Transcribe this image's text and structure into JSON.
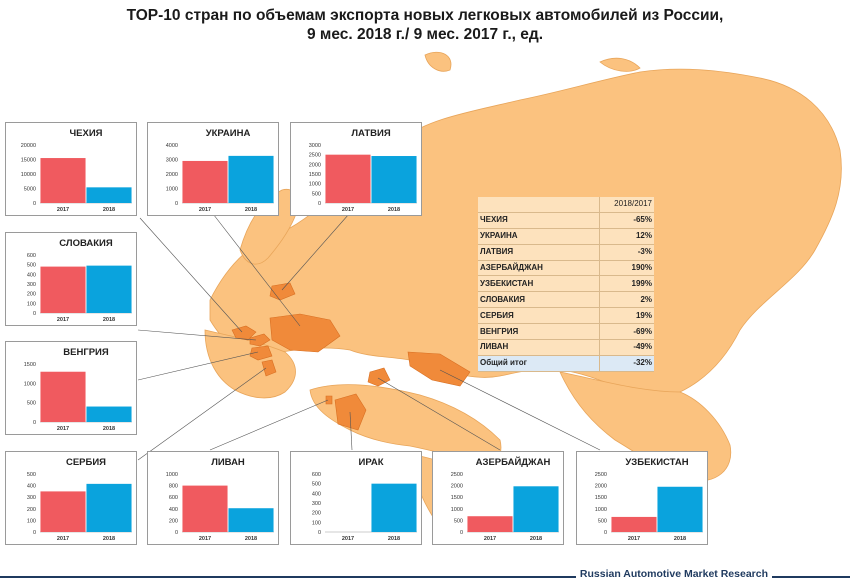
{
  "title": {
    "line1": "ТОР-10 стран по объемам экспорта новых легковых автомобилей из России,",
    "line2": "9 мес. 2018 г./ 9 мес. 2017 г., ед."
  },
  "colors": {
    "y2017": "#f05a5f",
    "y2018": "#0aa3dd",
    "land": "#fbc27f",
    "highlight": "#f08a3a",
    "border": "#e8a55a"
  },
  "table": {
    "header": "2018/2017",
    "rows": [
      {
        "country": "ЧЕХИЯ",
        "value": "-65%"
      },
      {
        "country": "УКРАИНА",
        "value": "12%"
      },
      {
        "country": "ЛАТВИЯ",
        "value": "-3%"
      },
      {
        "country": "АЗЕРБАЙДЖАН",
        "value": "190%"
      },
      {
        "country": "УЗБЕКИСТАН",
        "value": "199%"
      },
      {
        "country": "СЛОВАКИЯ",
        "value": "2%"
      },
      {
        "country": "СЕРБИЯ",
        "value": "19%"
      },
      {
        "country": "ВЕНГРИЯ",
        "value": "-69%"
      },
      {
        "country": "ЛИВАН",
        "value": "-49%"
      }
    ],
    "total": {
      "country": "Общий итог",
      "value": "-32%"
    }
  },
  "footer": "Russian Automotive Market Research",
  "chart_data": [
    {
      "type": "bar",
      "title": "ЧЕХИЯ",
      "categories": [
        "2017",
        "2018"
      ],
      "values": [
        15500,
        5400
      ],
      "yticks": [
        0,
        5000,
        10000,
        15000,
        20000
      ],
      "ylim": [
        0,
        20000
      ]
    },
    {
      "type": "bar",
      "title": "УКРАИНА",
      "categories": [
        "2017",
        "2018"
      ],
      "values": [
        2900,
        3250
      ],
      "yticks": [
        0,
        1000,
        2000,
        3000,
        4000
      ],
      "ylim": [
        0,
        4000
      ]
    },
    {
      "type": "bar",
      "title": "ЛАТВИЯ",
      "categories": [
        "2017",
        "2018"
      ],
      "values": [
        2500,
        2430
      ],
      "yticks": [
        0,
        500,
        1000,
        1500,
        2000,
        2500,
        3000
      ],
      "ylim": [
        0,
        3000
      ]
    },
    {
      "type": "bar",
      "title": "СЛОВАКИЯ",
      "categories": [
        "2017",
        "2018"
      ],
      "values": [
        480,
        490
      ],
      "yticks": [
        0,
        100,
        200,
        300,
        400,
        500,
        600
      ],
      "ylim": [
        0,
        600
      ]
    },
    {
      "type": "bar",
      "title": "ВЕНГРИЯ",
      "categories": [
        "2017",
        "2018"
      ],
      "values": [
        1300,
        400
      ],
      "yticks": [
        0,
        500,
        1000,
        1500
      ],
      "ylim": [
        0,
        1500
      ]
    },
    {
      "type": "bar",
      "title": "СЕРБИЯ",
      "categories": [
        "2017",
        "2018"
      ],
      "values": [
        350,
        415
      ],
      "yticks": [
        0,
        100,
        200,
        300,
        400,
        500
      ],
      "ylim": [
        0,
        500
      ]
    },
    {
      "type": "bar",
      "title": "ЛИВАН",
      "categories": [
        "2017",
        "2018"
      ],
      "values": [
        800,
        410
      ],
      "yticks": [
        0,
        200,
        400,
        600,
        800,
        1000
      ],
      "ylim": [
        0,
        1000
      ]
    },
    {
      "type": "bar",
      "title": "ИРАК",
      "categories": [
        "2017",
        "2018"
      ],
      "values": [
        0,
        500
      ],
      "yticks": [
        0,
        100,
        200,
        300,
        400,
        500,
        600
      ],
      "ylim": [
        0,
        600
      ]
    },
    {
      "type": "bar",
      "title": "АЗЕРБАЙДЖАН",
      "categories": [
        "2017",
        "2018"
      ],
      "values": [
        680,
        1970
      ],
      "yticks": [
        0,
        500,
        1000,
        1500,
        2000,
        2500
      ],
      "ylim": [
        0,
        2500
      ]
    },
    {
      "type": "bar",
      "title": "УЗБЕКИСТАН",
      "categories": [
        "2017",
        "2018"
      ],
      "values": [
        650,
        1950
      ],
      "yticks": [
        0,
        500,
        1000,
        1500,
        2000,
        2500
      ],
      "ylim": [
        0,
        2500
      ]
    }
  ]
}
